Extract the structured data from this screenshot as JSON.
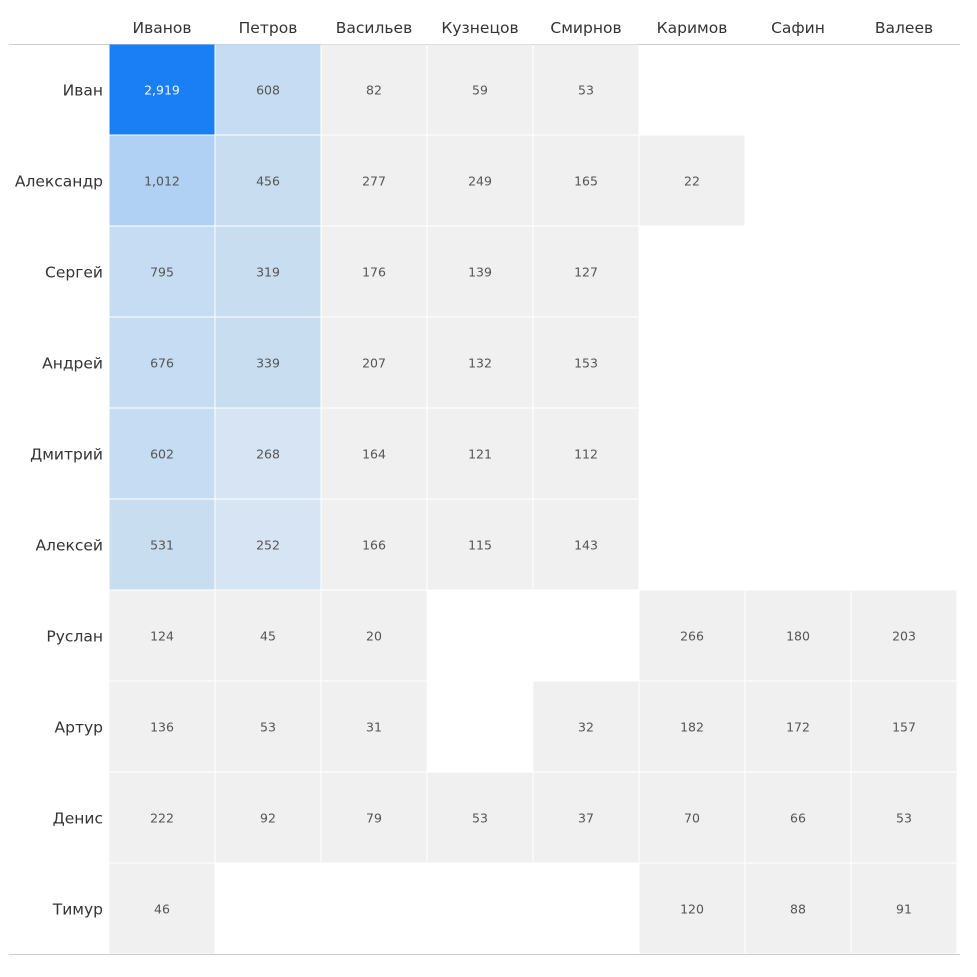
{
  "chart_data": {
    "type": "heatmap",
    "x_categories": [
      "Иванов",
      "Петров",
      "Васильев",
      "Кузнецов",
      "Смирнов",
      "Каримов",
      "Сафин",
      "Валеев"
    ],
    "y_categories": [
      "Иван",
      "Александр",
      "Сергей",
      "Андрей",
      "Дмитрий",
      "Алексей",
      "Руслан",
      "Артур",
      "Денис",
      "Тимур"
    ],
    "values": [
      [
        2919,
        608,
        82,
        59,
        53,
        null,
        null,
        null
      ],
      [
        1012,
        456,
        277,
        249,
        165,
        22,
        null,
        null
      ],
      [
        795,
        319,
        176,
        139,
        127,
        null,
        null,
        null
      ],
      [
        676,
        339,
        207,
        132,
        153,
        null,
        null,
        null
      ],
      [
        602,
        268,
        164,
        121,
        112,
        null,
        null,
        null
      ],
      [
        531,
        252,
        166,
        115,
        143,
        null,
        null,
        null
      ],
      [
        124,
        45,
        20,
        null,
        null,
        266,
        180,
        203
      ],
      [
        136,
        53,
        31,
        null,
        32,
        182,
        172,
        157
      ],
      [
        222,
        92,
        79,
        53,
        37,
        70,
        66,
        53
      ],
      [
        46,
        null,
        null,
        null,
        null,
        120,
        88,
        91
      ]
    ],
    "color_scale": {
      "base": "#f0f0f0",
      "tiers": [
        {
          "min": 2000,
          "color": "#1a7ff5"
        },
        {
          "min": 900,
          "color": "#b0d0f4"
        },
        {
          "min": 590,
          "color": "#c5dcf2"
        },
        {
          "min": 300,
          "color": "#c9ddf1"
        },
        {
          "min": 250,
          "color": "#d6e4f3"
        }
      ],
      "highlight_columns": [
        0,
        1
      ]
    }
  }
}
